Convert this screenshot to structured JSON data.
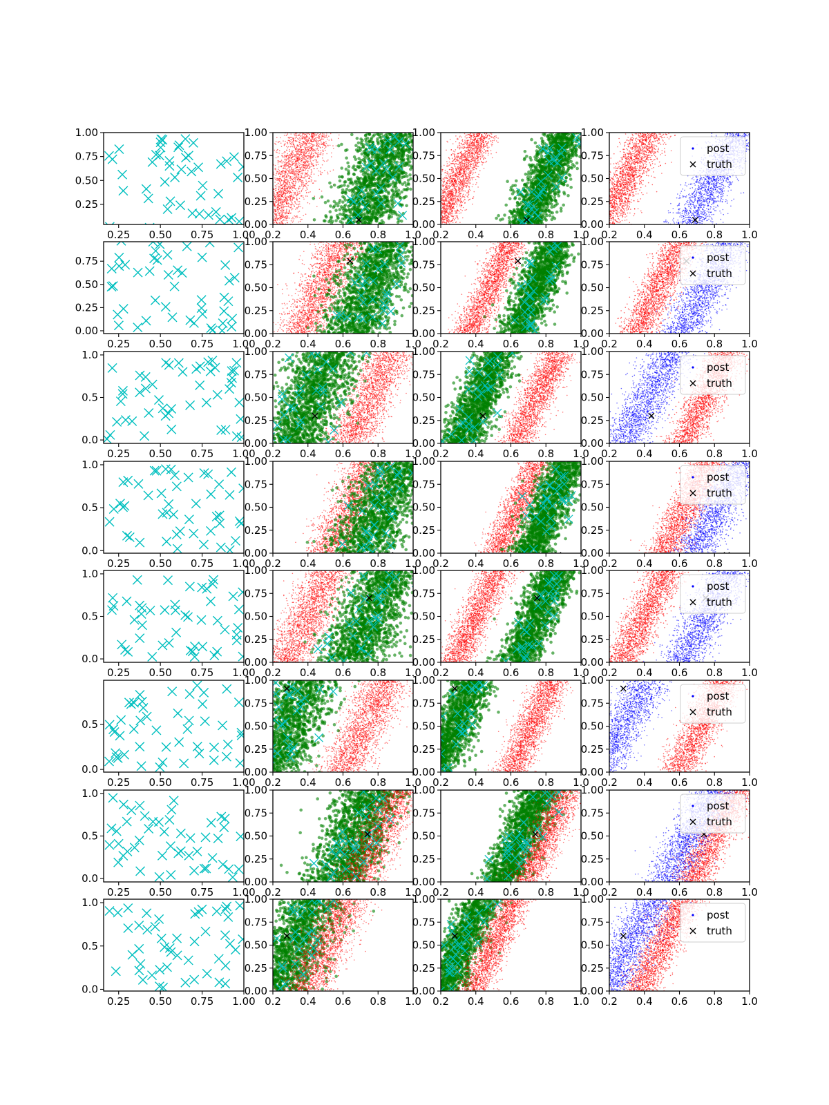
{
  "figure": {
    "title": ""
  },
  "legend": {
    "labels": [
      "post",
      "truth"
    ]
  },
  "colors": {
    "samples_cyan": "#00bfbf",
    "post_red": "#ff0000",
    "post_blue": "#0000ff",
    "green": "#008000",
    "truth": "#000000"
  },
  "chart_data": {
    "type": "scatter",
    "layout": "8 rows x 4 columns grid of scatter subplots",
    "columns": [
      {
        "name": "cyan x-marker scatter",
        "xlim": [
          0.16,
          1.0
        ],
        "xticks": [
          "0.25",
          "0.50",
          "0.75",
          "1.00"
        ]
      },
      {
        "name": "red+green posterior with cyan markers",
        "xlim": [
          0.2,
          1.0
        ],
        "xticks": [
          "0.2",
          "0.4",
          "0.6",
          "0.8",
          "1.0"
        ],
        "ylim": [
          0.0,
          1.0
        ]
      },
      {
        "name": "red+green posterior (narrow)",
        "xlim": [
          0.2,
          1.0
        ],
        "xticks": [
          "0.2",
          "0.4",
          "0.6",
          "0.8",
          "1.0"
        ],
        "ylim": [
          0.0,
          1.0
        ]
      },
      {
        "name": "post (red/blue) with truth",
        "xlim": [
          0.2,
          1.0
        ],
        "xticks": [
          "0.2",
          "0.4",
          "0.6",
          "0.8",
          "1.0"
        ],
        "ylim": [
          0.0,
          1.0
        ]
      }
    ],
    "rows": [
      {
        "yticks": [
          "0.25",
          "0.50",
          "0.75",
          "1.00"
        ],
        "ylim": [
          0.04,
          1.0
        ],
        "truth": [
          0.69,
          0.05
        ],
        "red_center": 0.3,
        "green_center": 0.8,
        "order": "green_top"
      },
      {
        "yticks": [
          "0.00",
          "0.25",
          "0.50",
          "0.75"
        ],
        "ylim": [
          -0.03,
          0.96
        ],
        "truth": [
          0.64,
          0.79
        ],
        "red_center": 0.48,
        "green_center": 0.75,
        "order": "green_top"
      },
      {
        "yticks": [
          "0.0",
          "0.5",
          "1.0"
        ],
        "ylim": [
          -0.04,
          1.04
        ],
        "truth": [
          0.44,
          0.3
        ],
        "red_center": 0.75,
        "green_center": 0.42,
        "order": "green_top"
      },
      {
        "yticks": [
          "0.0",
          "0.5",
          "1.0"
        ],
        "ylim": [
          -0.03,
          1.04
        ],
        "truth": [
          0.87,
          -0.02
        ],
        "red_center": 0.64,
        "green_center": 0.82,
        "order": "green_top"
      },
      {
        "yticks": [
          "0.0",
          "0.5",
          "1.0"
        ],
        "ylim": [
          -0.04,
          1.04
        ],
        "truth": [
          0.75,
          0.7
        ],
        "red_center": 0.4,
        "green_center": 0.75,
        "order": "green_top"
      },
      {
        "yticks": [
          "0.0",
          "0.5"
        ],
        "ylim": [
          -0.03,
          0.99
        ],
        "truth": [
          0.28,
          0.91
        ],
        "red_center": 0.72,
        "green_center": 0.28,
        "order": "green_top"
      },
      {
        "yticks": [
          "0.0",
          "0.5",
          "1.0"
        ],
        "ylim": [
          -0.04,
          1.04
        ],
        "truth": [
          0.74,
          0.52
        ],
        "red_center": 0.8,
        "green_center": 0.66,
        "order": "red_top"
      },
      {
        "yticks": [
          "0.0",
          "0.5",
          "1.0"
        ],
        "ylim": [
          -0.02,
          1.04
        ],
        "truth": [
          0.28,
          0.6
        ],
        "red_center": 0.5,
        "green_center": 0.32,
        "order": "red_top"
      }
    ],
    "series": [
      {
        "name": "post",
        "marker": "dot"
      },
      {
        "name": "truth",
        "marker": "x"
      }
    ]
  }
}
